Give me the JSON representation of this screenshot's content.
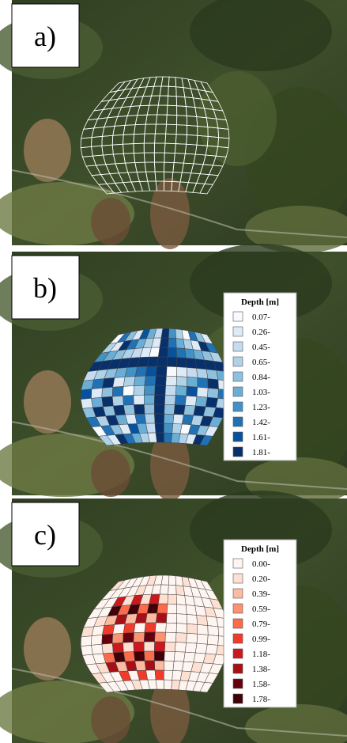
{
  "panels": [
    {
      "label": "a)"
    },
    {
      "label": "b)",
      "legend": {
        "title": "Depth [m]",
        "items": [
          {
            "label": "0.07-",
            "color": "#f7fbff"
          },
          {
            "label": "0.26-",
            "color": "#deebf7"
          },
          {
            "label": "0.45-",
            "color": "#c6dbef"
          },
          {
            "label": "0.65-",
            "color": "#b0d2e8"
          },
          {
            "label": "0.84-",
            "color": "#8fc0de"
          },
          {
            "label": "1.03-",
            "color": "#6aaed6"
          },
          {
            "label": "1.23-",
            "color": "#4292c6"
          },
          {
            "label": "1.42-",
            "color": "#2171b5"
          },
          {
            "label": "1.61-",
            "color": "#08519c"
          },
          {
            "label": "1.81-",
            "color": "#08306b"
          }
        ]
      }
    },
    {
      "label": "c)",
      "legend": {
        "title": "Depth [m]",
        "items": [
          {
            "label": "0.00-",
            "color": "#fff5f0"
          },
          {
            "label": "0.20-",
            "color": "#fee0d2"
          },
          {
            "label": "0.39-",
            "color": "#fcbba1"
          },
          {
            "label": "0.59-",
            "color": "#fc9272"
          },
          {
            "label": "0.79-",
            "color": "#fb6a4a"
          },
          {
            "label": "0.99-",
            "color": "#ef3b2c"
          },
          {
            "label": "1.18-",
            "color": "#cb181d"
          },
          {
            "label": "1.38-",
            "color": "#a50f15"
          },
          {
            "label": "1.58-",
            "color": "#67000d"
          },
          {
            "label": "1.78-",
            "color": "#3f0008"
          }
        ]
      }
    }
  ]
}
